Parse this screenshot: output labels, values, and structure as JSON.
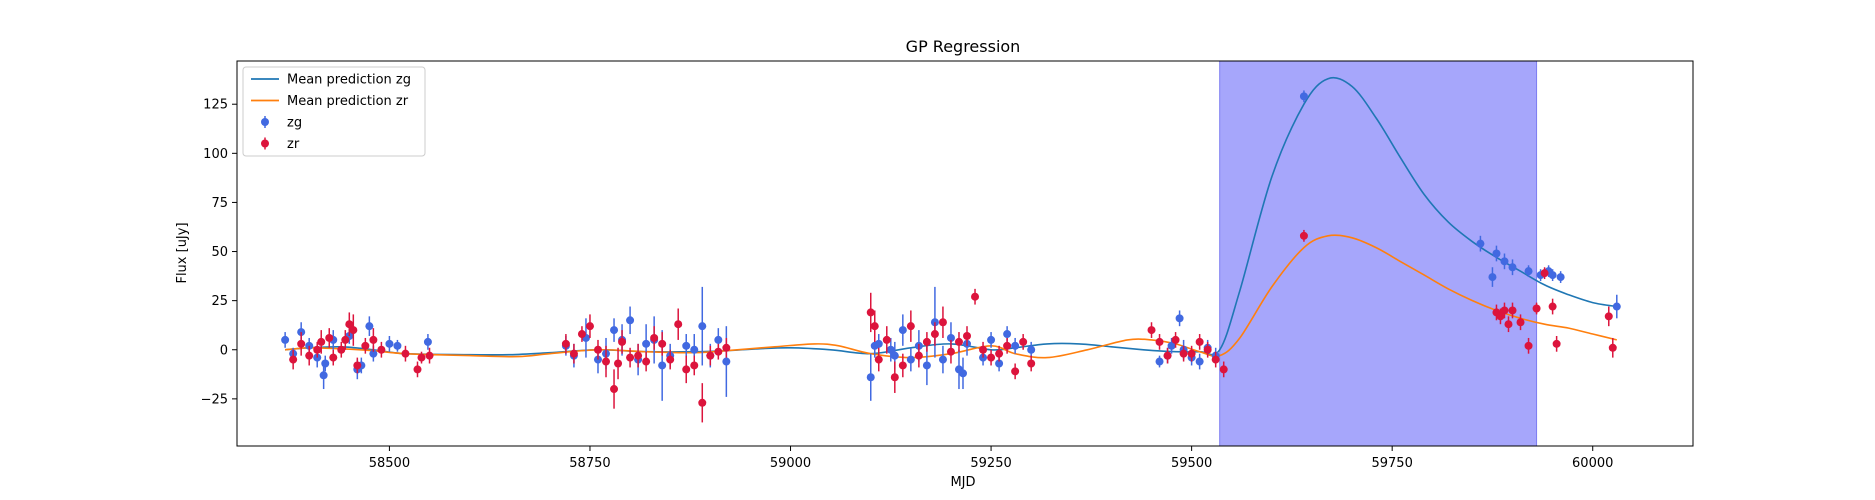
{
  "chart_data": {
    "type": "scatter",
    "title": "GP Regression",
    "xlabel": "MJD",
    "ylabel": "Flux [uJy]",
    "xlim": [
      58310,
      60125
    ],
    "ylim": [
      -49,
      147
    ],
    "xticks": [
      58500,
      58750,
      59000,
      59250,
      59500,
      59750,
      60000
    ],
    "yticks": [
      -25,
      0,
      25,
      50,
      75,
      100,
      125
    ],
    "grid": false,
    "legend_position": "top-left",
    "highlight_span": {
      "x": [
        59535,
        59930
      ],
      "color": "#a6a6fb"
    },
    "lines": [
      {
        "name": "Mean prediction zg",
        "color": "#1f77b4",
        "points": [
          [
            58370,
            0
          ],
          [
            58400,
            1
          ],
          [
            58440,
            1.5
          ],
          [
            58480,
            0
          ],
          [
            58520,
            -2
          ],
          [
            58600,
            -2.5
          ],
          [
            58650,
            -2.5
          ],
          [
            58700,
            -1.5
          ],
          [
            58760,
            0
          ],
          [
            58820,
            -1
          ],
          [
            58880,
            -1
          ],
          [
            58920,
            -0.5
          ],
          [
            58960,
            0.5
          ],
          [
            59000,
            1
          ],
          [
            59050,
            0
          ],
          [
            59100,
            -2
          ],
          [
            59150,
            1
          ],
          [
            59200,
            3
          ],
          [
            59250,
            0
          ],
          [
            59280,
            1
          ],
          [
            59320,
            3
          ],
          [
            59360,
            3
          ],
          [
            59400,
            1.5
          ],
          [
            59440,
            0
          ],
          [
            59480,
            -1
          ],
          [
            59510,
            -1
          ],
          [
            59535,
            0
          ],
          [
            59560,
            30
          ],
          [
            59600,
            88
          ],
          [
            59640,
            125
          ],
          [
            59670,
            138
          ],
          [
            59700,
            134
          ],
          [
            59730,
            118
          ],
          [
            59760,
            98
          ],
          [
            59790,
            79
          ],
          [
            59820,
            65
          ],
          [
            59850,
            55
          ],
          [
            59880,
            47
          ],
          [
            59910,
            40
          ],
          [
            59940,
            33
          ],
          [
            59970,
            28
          ],
          [
            60000,
            24
          ],
          [
            60030,
            22
          ]
        ]
      },
      {
        "name": "Mean prediction zr",
        "color": "#ff7f0e",
        "points": [
          [
            58370,
            0
          ],
          [
            58400,
            1
          ],
          [
            58440,
            0.5
          ],
          [
            58480,
            -0.5
          ],
          [
            58520,
            -2
          ],
          [
            58600,
            -3
          ],
          [
            58660,
            -3.5
          ],
          [
            58700,
            -2
          ],
          [
            58760,
            0
          ],
          [
            58820,
            -1
          ],
          [
            58880,
            -1.5
          ],
          [
            58920,
            -0.5
          ],
          [
            58980,
            1.5
          ],
          [
            59030,
            3
          ],
          [
            59060,
            2
          ],
          [
            59100,
            -2
          ],
          [
            59150,
            -4
          ],
          [
            59200,
            -2
          ],
          [
            59250,
            2
          ],
          [
            59280,
            -2
          ],
          [
            59320,
            -4
          ],
          [
            59370,
            0
          ],
          [
            59420,
            5
          ],
          [
            59450,
            5
          ],
          [
            59480,
            3
          ],
          [
            59510,
            -1
          ],
          [
            59535,
            -3
          ],
          [
            59560,
            6
          ],
          [
            59600,
            32
          ],
          [
            59640,
            52
          ],
          [
            59670,
            58
          ],
          [
            59700,
            57
          ],
          [
            59730,
            52
          ],
          [
            59760,
            45
          ],
          [
            59790,
            38
          ],
          [
            59820,
            31
          ],
          [
            59850,
            25
          ],
          [
            59880,
            20
          ],
          [
            59910,
            16
          ],
          [
            59940,
            13
          ],
          [
            59970,
            11
          ],
          [
            60000,
            8
          ],
          [
            60030,
            5
          ]
        ]
      }
    ],
    "series": [
      {
        "name": "zg",
        "color": "#4169e1",
        "points": [
          [
            58370,
            5,
            4
          ],
          [
            58380,
            -2,
            3
          ],
          [
            58390,
            9,
            5
          ],
          [
            58400,
            2,
            4
          ],
          [
            58410,
            -4,
            5
          ],
          [
            58418,
            -13,
            7
          ],
          [
            58420,
            -7,
            4
          ],
          [
            58430,
            5,
            5
          ],
          [
            58450,
            7,
            4
          ],
          [
            58460,
            -10,
            5
          ],
          [
            58465,
            -8,
            4
          ],
          [
            58475,
            12,
            5
          ],
          [
            58480,
            -2,
            4
          ],
          [
            58500,
            3,
            4
          ],
          [
            58510,
            2,
            3
          ],
          [
            58548,
            4,
            4
          ],
          [
            58720,
            2,
            5
          ],
          [
            58730,
            -3,
            6
          ],
          [
            58745,
            6,
            10
          ],
          [
            58760,
            -5,
            7
          ],
          [
            58770,
            -2,
            8
          ],
          [
            58780,
            10,
            6
          ],
          [
            58790,
            5,
            8
          ],
          [
            58800,
            15,
            7
          ],
          [
            58810,
            -5,
            8
          ],
          [
            58820,
            3,
            10
          ],
          [
            58830,
            5,
            12
          ],
          [
            58840,
            -8,
            18
          ],
          [
            58850,
            -3,
            6
          ],
          [
            58870,
            2,
            6
          ],
          [
            58880,
            0,
            8
          ],
          [
            58890,
            12,
            20
          ],
          [
            58900,
            -3,
            6
          ],
          [
            58910,
            5,
            6
          ],
          [
            58920,
            -6,
            18
          ],
          [
            59100,
            -14,
            12
          ],
          [
            59105,
            2,
            6
          ],
          [
            59110,
            3,
            5
          ],
          [
            59125,
            0,
            6
          ],
          [
            59130,
            -3,
            7
          ],
          [
            59140,
            10,
            8
          ],
          [
            59150,
            -5,
            6
          ],
          [
            59160,
            2,
            8
          ],
          [
            59170,
            -8,
            10
          ],
          [
            59180,
            14,
            18
          ],
          [
            59190,
            -5,
            7
          ],
          [
            59200,
            6,
            8
          ],
          [
            59210,
            -10,
            10
          ],
          [
            59215,
            -12,
            8
          ],
          [
            59220,
            3,
            6
          ],
          [
            59240,
            -4,
            4
          ],
          [
            59250,
            5,
            4
          ],
          [
            59260,
            -7,
            4
          ],
          [
            59270,
            8,
            4
          ],
          [
            59280,
            2,
            4
          ],
          [
            59300,
            0,
            4
          ],
          [
            59460,
            -6,
            3
          ],
          [
            59470,
            -3,
            4
          ],
          [
            59475,
            2,
            4
          ],
          [
            59485,
            16,
            4
          ],
          [
            59490,
            0,
            5
          ],
          [
            59500,
            -4,
            4
          ],
          [
            59510,
            -6,
            4
          ],
          [
            59520,
            1,
            4
          ],
          [
            59530,
            -3,
            4
          ],
          [
            59640,
            129,
            3
          ],
          [
            59860,
            54,
            4
          ],
          [
            59875,
            37,
            5
          ],
          [
            59880,
            49,
            4
          ],
          [
            59890,
            45,
            4
          ],
          [
            59900,
            42,
            4
          ],
          [
            59920,
            40,
            3
          ],
          [
            59935,
            38,
            3
          ],
          [
            59945,
            40,
            3
          ],
          [
            59950,
            38,
            3
          ],
          [
            59960,
            37,
            3
          ],
          [
            60030,
            22,
            6
          ]
        ]
      },
      {
        "name": "zr",
        "color": "#dc143c",
        "points": [
          [
            58380,
            -5,
            5
          ],
          [
            58390,
            3,
            6
          ],
          [
            58400,
            -3,
            5
          ],
          [
            58410,
            0,
            4
          ],
          [
            58415,
            4,
            6
          ],
          [
            58425,
            6,
            5
          ],
          [
            58430,
            -4,
            4
          ],
          [
            58440,
            0,
            4
          ],
          [
            58445,
            5,
            5
          ],
          [
            58450,
            13,
            6
          ],
          [
            58455,
            10,
            8
          ],
          [
            58460,
            -8,
            4
          ],
          [
            58470,
            2,
            4
          ],
          [
            58480,
            5,
            6
          ],
          [
            58490,
            0,
            4
          ],
          [
            58520,
            -2,
            4
          ],
          [
            58535,
            -10,
            4
          ],
          [
            58540,
            -4,
            3
          ],
          [
            58550,
            -3,
            4
          ],
          [
            58720,
            3,
            5
          ],
          [
            58730,
            -2,
            5
          ],
          [
            58740,
            8,
            4
          ],
          [
            58750,
            12,
            6
          ],
          [
            58760,
            0,
            5
          ],
          [
            58770,
            -6,
            8
          ],
          [
            58780,
            -20,
            10
          ],
          [
            58785,
            -7,
            8
          ],
          [
            58790,
            4,
            6
          ],
          [
            58800,
            -4,
            5
          ],
          [
            58810,
            -3,
            6
          ],
          [
            58820,
            -6,
            5
          ],
          [
            58830,
            6,
            6
          ],
          [
            58840,
            3,
            6
          ],
          [
            58850,
            -5,
            5
          ],
          [
            58860,
            13,
            8
          ],
          [
            58870,
            -10,
            7
          ],
          [
            58880,
            -8,
            5
          ],
          [
            58890,
            -27,
            10
          ],
          [
            58900,
            -3,
            5
          ],
          [
            58910,
            -1,
            4
          ],
          [
            58920,
            1,
            5
          ],
          [
            59100,
            19,
            10
          ],
          [
            59105,
            12,
            8
          ],
          [
            59110,
            -5,
            6
          ],
          [
            59120,
            5,
            7
          ],
          [
            59130,
            -14,
            8
          ],
          [
            59140,
            -8,
            6
          ],
          [
            59150,
            12,
            8
          ],
          [
            59160,
            -3,
            6
          ],
          [
            59170,
            4,
            5
          ],
          [
            59180,
            8,
            6
          ],
          [
            59190,
            14,
            8
          ],
          [
            59200,
            -1,
            6
          ],
          [
            59210,
            4,
            5
          ],
          [
            59220,
            7,
            5
          ],
          [
            59230,
            27,
            4
          ],
          [
            59240,
            0,
            4
          ],
          [
            59250,
            -4,
            4
          ],
          [
            59260,
            -2,
            4
          ],
          [
            59270,
            2,
            4
          ],
          [
            59280,
            -11,
            4
          ],
          [
            59290,
            4,
            4
          ],
          [
            59300,
            -7,
            4
          ],
          [
            59450,
            10,
            4
          ],
          [
            59460,
            4,
            4
          ],
          [
            59470,
            -3,
            4
          ],
          [
            59480,
            5,
            4
          ],
          [
            59490,
            -2,
            4
          ],
          [
            59500,
            -2,
            4
          ],
          [
            59510,
            4,
            4
          ],
          [
            59520,
            0,
            4
          ],
          [
            59530,
            -5,
            4
          ],
          [
            59540,
            -10,
            4
          ],
          [
            59640,
            58,
            3
          ],
          [
            59880,
            19,
            4
          ],
          [
            59885,
            17,
            4
          ],
          [
            59890,
            20,
            4
          ],
          [
            59895,
            13,
            4
          ],
          [
            59900,
            20,
            4
          ],
          [
            59910,
            14,
            4
          ],
          [
            59920,
            2,
            4
          ],
          [
            59930,
            21,
            3
          ],
          [
            59940,
            39,
            3
          ],
          [
            59950,
            22,
            4
          ],
          [
            59955,
            3,
            4
          ],
          [
            60020,
            17,
            5
          ],
          [
            60025,
            1,
            5
          ]
        ]
      }
    ]
  },
  "legend": {
    "items": [
      {
        "label": "Mean prediction zg",
        "kind": "line",
        "color": "#1f77b4"
      },
      {
        "label": "Mean prediction zr",
        "kind": "line",
        "color": "#ff7f0e"
      },
      {
        "label": "zg",
        "kind": "marker",
        "color": "#4169e1"
      },
      {
        "label": "zr",
        "kind": "marker",
        "color": "#dc143c"
      }
    ]
  }
}
